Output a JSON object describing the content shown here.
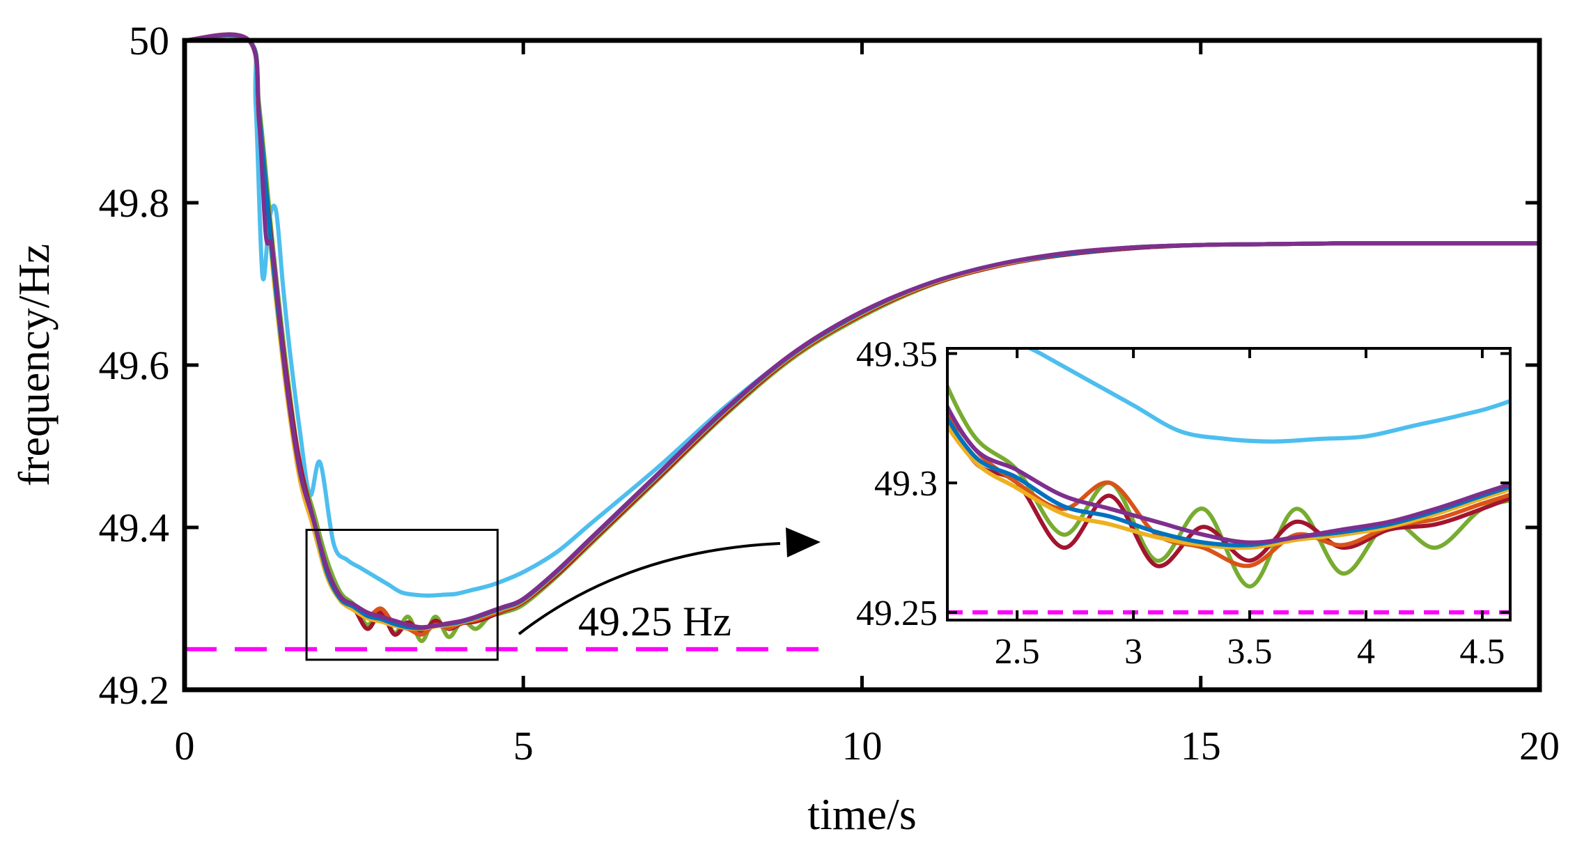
{
  "chart_data": {
    "type": "line",
    "xlabel": "time/s",
    "ylabel": "frequency/Hz",
    "xlim": [
      0,
      20
    ],
    "ylim": [
      49.2,
      50
    ],
    "xticks": [
      "0",
      "5",
      "10",
      "15",
      "20"
    ],
    "yticks": [
      "49.2",
      "49.4",
      "49.6",
      "49.8",
      "50"
    ],
    "grid": false,
    "legend": "none",
    "threshold": {
      "value": 49.25,
      "label": "49.25 Hz",
      "color": "#ff00ff"
    },
    "series": [
      {
        "color": "#4dbeee",
        "x": [
          0,
          0.95,
          1.05,
          1.15,
          1.25,
          1.35,
          1.45,
          1.55,
          1.7,
          1.85,
          2.0,
          2.2,
          2.4,
          2.6,
          2.8,
          3.0,
          3.2,
          3.4,
          3.6,
          3.8,
          4.0,
          4.2,
          4.4,
          4.6,
          5,
          5.5,
          6,
          7,
          8,
          9,
          10,
          11,
          12,
          13,
          14,
          15,
          16,
          17,
          18,
          19,
          20
        ],
        "y": [
          50,
          50,
          49.92,
          49.71,
          49.78,
          49.79,
          49.7,
          49.62,
          49.52,
          49.44,
          49.48,
          49.38,
          49.36,
          49.35,
          49.34,
          49.33,
          49.32,
          49.317,
          49.316,
          49.317,
          49.318,
          49.322,
          49.326,
          49.331,
          49.345,
          49.37,
          49.405,
          49.475,
          49.55,
          49.615,
          49.665,
          49.7,
          49.723,
          49.736,
          49.744,
          49.748,
          49.749,
          49.75,
          49.75,
          49.75,
          49.75
        ]
      },
      {
        "color": "#77ac30",
        "x": [
          0,
          0.95,
          1.1,
          1.3,
          1.5,
          1.7,
          1.9,
          2.1,
          2.3,
          2.5,
          2.7,
          2.9,
          3.1,
          3.3,
          3.5,
          3.7,
          3.9,
          4.1,
          4.3,
          4.5,
          4.7,
          5,
          5.5,
          6,
          7,
          8,
          9,
          10,
          11,
          12,
          13,
          14,
          15,
          16,
          17,
          18,
          19,
          20
        ],
        "y": [
          50,
          50,
          49.92,
          49.75,
          49.6,
          49.48,
          49.42,
          49.36,
          49.32,
          49.305,
          49.28,
          49.3,
          49.27,
          49.29,
          49.26,
          49.29,
          49.265,
          49.285,
          49.275,
          49.29,
          49.295,
          49.305,
          49.34,
          49.38,
          49.46,
          49.54,
          49.61,
          49.66,
          49.698,
          49.722,
          49.736,
          49.744,
          49.748,
          49.749,
          49.75,
          49.75,
          49.75,
          49.75
        ]
      },
      {
        "color": "#a2142f",
        "x": [
          0,
          0.95,
          1.1,
          1.3,
          1.5,
          1.7,
          1.9,
          2.1,
          2.3,
          2.5,
          2.7,
          2.9,
          3.1,
          3.3,
          3.5,
          3.7,
          3.9,
          4.1,
          4.3,
          4.5,
          4.7,
          5,
          5.5,
          6,
          7,
          8,
          9,
          10,
          11,
          12,
          13,
          14,
          15,
          16,
          17,
          18,
          19,
          20
        ],
        "y": [
          50,
          50,
          49.9,
          49.74,
          49.59,
          49.48,
          49.41,
          49.35,
          49.31,
          49.3,
          49.275,
          49.295,
          49.268,
          49.283,
          49.27,
          49.285,
          49.275,
          49.282,
          49.284,
          49.29,
          49.297,
          49.308,
          49.342,
          49.382,
          49.462,
          49.542,
          49.612,
          49.662,
          49.699,
          49.722,
          49.736,
          49.744,
          49.748,
          49.749,
          49.75,
          49.75,
          49.75,
          49.75
        ]
      },
      {
        "color": "#d95319",
        "x": [
          0,
          0.95,
          1.1,
          1.3,
          1.5,
          1.7,
          1.9,
          2.1,
          2.3,
          2.5,
          2.7,
          2.9,
          3.1,
          3.3,
          3.5,
          3.7,
          3.9,
          4.1,
          4.3,
          4.5,
          4.7,
          5,
          5.5,
          6,
          7,
          8,
          9,
          10,
          11,
          12,
          13,
          14,
          15,
          16,
          17,
          18,
          19,
          20
        ],
        "y": [
          50,
          50,
          49.91,
          49.73,
          49.58,
          49.47,
          49.4,
          49.345,
          49.315,
          49.3,
          49.29,
          49.3,
          49.28,
          49.275,
          49.268,
          49.28,
          49.276,
          49.283,
          49.286,
          49.292,
          49.298,
          49.309,
          49.344,
          49.384,
          49.464,
          49.544,
          49.613,
          49.663,
          49.7,
          49.723,
          49.737,
          49.745,
          49.748,
          49.749,
          49.75,
          49.75,
          49.75,
          49.75
        ]
      },
      {
        "color": "#edb120",
        "x": [
          0,
          0.95,
          1.1,
          1.3,
          1.5,
          1.7,
          1.9,
          2.1,
          2.3,
          2.5,
          2.7,
          2.9,
          3.1,
          3.3,
          3.5,
          3.7,
          3.9,
          4.1,
          4.3,
          4.5,
          4.7,
          5,
          5.5,
          6,
          7,
          8,
          9,
          10,
          11,
          12,
          13,
          14,
          15,
          16,
          17,
          18,
          19,
          20
        ],
        "y": [
          50,
          50,
          49.9,
          49.72,
          49.57,
          49.46,
          49.4,
          49.34,
          49.31,
          49.298,
          49.288,
          49.284,
          49.279,
          49.276,
          49.275,
          49.278,
          49.28,
          49.283,
          49.288,
          49.294,
          49.3,
          49.31,
          49.345,
          49.385,
          49.465,
          49.545,
          49.614,
          49.664,
          49.7,
          49.723,
          49.737,
          49.745,
          49.748,
          49.749,
          49.75,
          49.75,
          49.75,
          49.75
        ]
      },
      {
        "color": "#0072bd",
        "x": [
          0,
          0.95,
          1.1,
          1.3,
          1.5,
          1.7,
          1.9,
          2.1,
          2.3,
          2.5,
          2.7,
          2.9,
          3.1,
          3.3,
          3.5,
          3.7,
          3.9,
          4.1,
          4.3,
          4.5,
          4.7,
          5,
          5.5,
          6,
          7,
          8,
          9,
          10,
          11,
          12,
          13,
          14,
          15,
          16,
          17,
          18,
          19,
          20
        ],
        "y": [
          50,
          50,
          49.91,
          49.73,
          49.58,
          49.47,
          49.41,
          49.345,
          49.312,
          49.302,
          49.291,
          49.287,
          49.281,
          49.277,
          49.276,
          49.279,
          49.281,
          49.284,
          49.289,
          49.295,
          49.301,
          49.311,
          49.346,
          49.386,
          49.466,
          49.546,
          49.615,
          49.665,
          49.701,
          49.724,
          49.737,
          49.745,
          49.748,
          49.749,
          49.75,
          49.75,
          49.75,
          49.75
        ]
      },
      {
        "color": "#7e2f8e",
        "x": [
          0,
          0.95,
          1.1,
          1.2,
          1.3,
          1.5,
          1.7,
          1.9,
          2.1,
          2.3,
          2.5,
          2.7,
          2.9,
          3.1,
          3.3,
          3.5,
          3.7,
          3.9,
          4.1,
          4.3,
          4.5,
          4.7,
          5,
          5.5,
          6,
          7,
          8,
          9,
          10,
          11,
          12,
          13,
          14,
          15,
          16,
          17,
          18,
          19,
          20
        ],
        "y": [
          50,
          50,
          49.9,
          49.76,
          49.74,
          49.58,
          49.47,
          49.41,
          49.35,
          49.315,
          49.305,
          49.295,
          49.29,
          49.285,
          49.28,
          49.277,
          49.279,
          49.282,
          49.285,
          49.29,
          49.296,
          49.302,
          49.312,
          49.347,
          49.387,
          49.467,
          49.547,
          49.616,
          49.666,
          49.701,
          49.724,
          49.738,
          49.745,
          49.748,
          49.749,
          49.75,
          49.75,
          49.75,
          49.75
        ]
      }
    ],
    "inset": {
      "xlim": [
        2.2,
        4.62
      ],
      "ylim": [
        49.247,
        49.352
      ],
      "xticks": [
        "2.5",
        "3",
        "3.5",
        "4",
        "4.5"
      ],
      "yticks": [
        "49.25",
        "49.3",
        "49.35"
      ],
      "zoom_box": {
        "x": [
          1.8,
          4.62
        ],
        "y": [
          49.237,
          49.397
        ]
      }
    }
  }
}
